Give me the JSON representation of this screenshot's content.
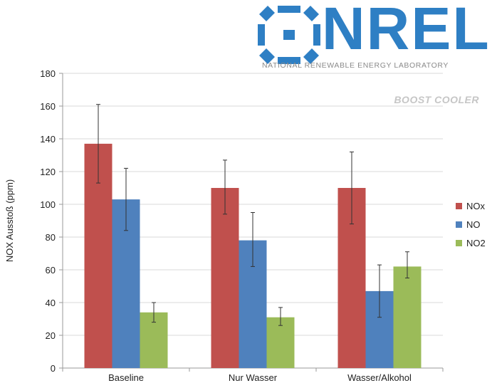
{
  "logo": {
    "wordmark": "NREL",
    "subtitle": "NATIONAL RENEWABLE ENERGY LABORATORY",
    "tagline": "BOOST COOLER",
    "brand_color": "#2e7fc4"
  },
  "chart_data": {
    "type": "bar",
    "title": "",
    "xlabel": "",
    "ylabel": "NOX Ausstoß (ppm)",
    "ylim": [
      0,
      180
    ],
    "yticks": [
      0,
      20,
      40,
      60,
      80,
      100,
      120,
      140,
      160,
      180
    ],
    "grid": true,
    "legend_position": "right",
    "categories": [
      "Baseline",
      "Nur Wasser",
      "Wasser/Alkohol"
    ],
    "series": [
      {
        "name": "NOx",
        "color": "#c0504d",
        "values": [
          137,
          110,
          110
        ],
        "error_low": [
          113,
          94,
          88
        ],
        "error_high": [
          161,
          127,
          132
        ]
      },
      {
        "name": "NO",
        "color": "#4f81bd",
        "values": [
          103,
          78,
          47
        ],
        "error_low": [
          84,
          62,
          31
        ],
        "error_high": [
          122,
          95,
          63
        ]
      },
      {
        "name": "NO2",
        "color": "#9bbb59",
        "values": [
          34,
          31,
          62
        ],
        "error_low": [
          28,
          26,
          55
        ],
        "error_high": [
          40,
          37,
          71
        ]
      }
    ]
  }
}
